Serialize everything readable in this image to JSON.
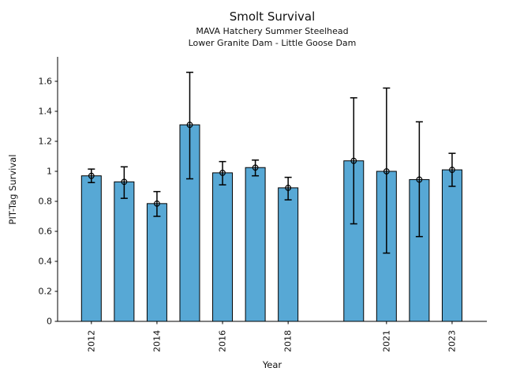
{
  "figure": {
    "title": "Smolt Survival",
    "subtitle1": "MAVA Hatchery Summer Steelhead",
    "subtitle2": "Lower Granite Dam - Little Goose Dam"
  },
  "chart_data": {
    "type": "bar",
    "title": "Smolt Survival",
    "subtitles": [
      "MAVA Hatchery Summer Steelhead",
      "Lower Granite Dam - Little Goose Dam"
    ],
    "xlabel": "Year",
    "ylabel": "PIT-Tag Survival",
    "x": [
      2012,
      2013,
      2014,
      2015,
      2016,
      2017,
      2018,
      2020,
      2021,
      2022,
      2023
    ],
    "values": [
      0.97,
      0.93,
      0.785,
      1.31,
      0.99,
      1.025,
      0.89,
      1.07,
      1.0,
      0.945,
      1.01
    ],
    "error_low": [
      0.925,
      0.82,
      0.7,
      0.95,
      0.91,
      0.97,
      0.81,
      0.65,
      0.455,
      0.565,
      0.9
    ],
    "error_high": [
      1.015,
      1.03,
      0.865,
      1.66,
      1.065,
      1.075,
      0.96,
      1.49,
      1.555,
      1.33,
      1.12
    ],
    "missing_years": [
      2019
    ],
    "xticks": [
      2012,
      2014,
      2016,
      2018,
      2021,
      2023
    ],
    "xtick_labels": [
      "2012",
      "2014",
      "2016",
      "2018",
      "2021",
      "2023"
    ],
    "yticks": [
      0,
      0.2,
      0.4,
      0.6,
      0.8,
      1.0,
      1.2,
      1.4,
      1.6
    ],
    "ytick_labels": [
      "0",
      "0.2",
      "0.4",
      "0.6",
      "0.8",
      "1",
      "1.2",
      "1.4",
      "1.6"
    ],
    "xlim": [
      2010.97,
      2024.06
    ],
    "ylim": [
      0,
      1.763
    ],
    "grid": false,
    "legend": null,
    "marker": "open-circle",
    "colors": {
      "bar_fill": "#57A8D5",
      "bar_edge": "#000000",
      "error_bar": "#000000",
      "axis": "#000000",
      "text": "#111111"
    }
  }
}
